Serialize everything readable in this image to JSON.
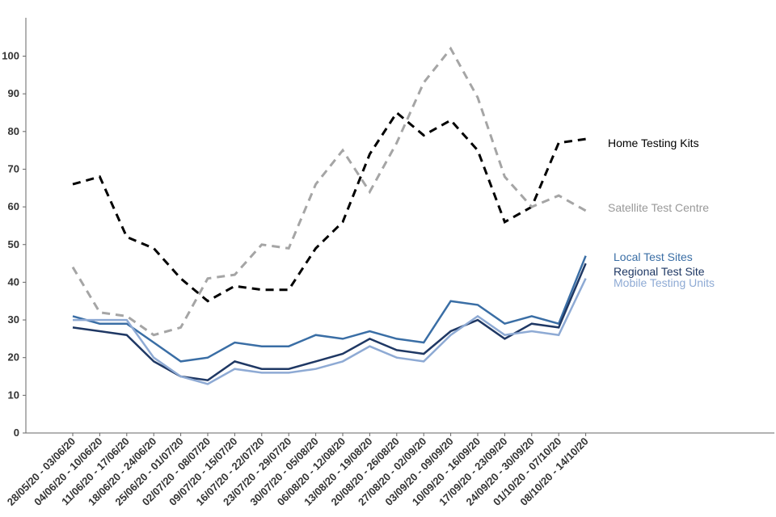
{
  "chart_data": {
    "type": "line",
    "title": "",
    "xlabel": "",
    "ylabel": "",
    "ylim": [
      0,
      110
    ],
    "yticks": [
      0,
      10,
      20,
      30,
      40,
      50,
      60,
      70,
      80,
      90,
      100
    ],
    "grid": false,
    "legend": "inline-right",
    "categories": [
      "28/05/20 - 03/06/20",
      "04/06/20 - 10/06/20",
      "11/06/20 - 17/06/20",
      "18/06/20 - 24/06/20",
      "25/06/20 - 01/07/20",
      "02/07/20 - 08/07/20",
      "09/07/20 - 15/07/20",
      "16/07/20 - 22/07/20",
      "23/07/20 - 29/07/20",
      "30/07/20 - 05/08/20",
      "06/08/20 - 12/08/20",
      "13/08/20 - 19/08/20",
      "20/08/20 - 26/08/20",
      "27/08/20 - 02/09/20",
      "03/09/20 - 09/09/20",
      "10/09/20 - 16/09/20",
      "17/09/20 - 23/09/20",
      "24/09/20 - 30/09/20",
      "01/10/20 - 07/10/20",
      "08/10/20 - 14/10/20"
    ],
    "series": [
      {
        "name": "Home Testing Kits",
        "color": "#000000",
        "dashed": true,
        "values": [
          66,
          68,
          52,
          49,
          41,
          35,
          39,
          38,
          38,
          49,
          56,
          74,
          85,
          79,
          83,
          75,
          56,
          60,
          77,
          78
        ]
      },
      {
        "name": "Satellite Test Centre",
        "color": "#a5a5a5",
        "dashed": true,
        "values": [
          44,
          32,
          31,
          26,
          28,
          41,
          42,
          50,
          49,
          66,
          75,
          64,
          77,
          93,
          102,
          89,
          68,
          60,
          63,
          59
        ]
      },
      {
        "name": "Local Test Sites",
        "color": "#3a6ea5",
        "dashed": false,
        "values": [
          31,
          29,
          29,
          24,
          19,
          20,
          24,
          23,
          23,
          26,
          25,
          27,
          25,
          24,
          35,
          34,
          29,
          31,
          29,
          47
        ]
      },
      {
        "name": "Regional Test Site",
        "color": "#1f3864",
        "dashed": false,
        "values": [
          28,
          27,
          26,
          19,
          15,
          14,
          19,
          17,
          17,
          19,
          21,
          25,
          22,
          21,
          27,
          30,
          25,
          29,
          28,
          45
        ]
      },
      {
        "name": "Mobile Testing Units",
        "color": "#8eaad4",
        "dashed": false,
        "values": [
          30,
          30,
          30,
          20,
          15,
          13,
          17,
          16,
          16,
          17,
          19,
          23,
          20,
          19,
          26,
          31,
          26,
          27,
          26,
          41
        ]
      }
    ]
  }
}
